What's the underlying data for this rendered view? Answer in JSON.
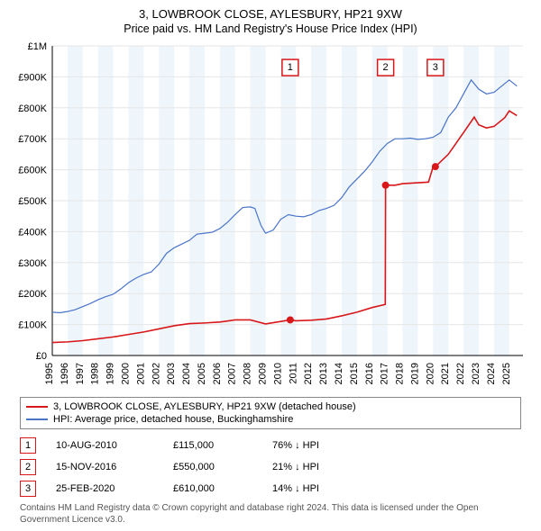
{
  "title": "3, LOWBROOK CLOSE, AYLESBURY, HP21 9XW",
  "subtitle": "Price paid vs. HM Land Registry's House Price Index (HPI)",
  "chart": {
    "type": "line",
    "x_domain": [
      1995,
      2025.9
    ],
    "y_domain": [
      0,
      1000000
    ],
    "yticks": [
      0,
      100000,
      200000,
      300000,
      400000,
      500000,
      600000,
      700000,
      800000,
      900000,
      1000000
    ],
    "ytick_labels": [
      "£0",
      "£100K",
      "£200K",
      "£300K",
      "£400K",
      "£500K",
      "£600K",
      "£700K",
      "£800K",
      "£900K",
      "£1M"
    ],
    "xticks": [
      1995,
      1996,
      1997,
      1998,
      1999,
      2000,
      2001,
      2002,
      2003,
      2004,
      2005,
      2006,
      2007,
      2008,
      2009,
      2010,
      2011,
      2012,
      2013,
      2014,
      2015,
      2016,
      2017,
      2018,
      2019,
      2020,
      2021,
      2022,
      2023,
      2024,
      2025
    ],
    "grid_color": "#e6e6e6",
    "alt_band_color": "#eef5fb",
    "axis_color": "#000000",
    "series": {
      "hpi": {
        "label": "HPI: Average price, detached house, Buckinghamshire",
        "color": "#4a74c9",
        "width": 1.2,
        "points": [
          [
            1995.0,
            140000
          ],
          [
            1995.5,
            138000
          ],
          [
            1996.0,
            142000
          ],
          [
            1996.5,
            148000
          ],
          [
            1997.0,
            158000
          ],
          [
            1997.5,
            168000
          ],
          [
            1998.0,
            180000
          ],
          [
            1998.5,
            190000
          ],
          [
            1999.0,
            198000
          ],
          [
            1999.5,
            215000
          ],
          [
            2000.0,
            235000
          ],
          [
            2000.5,
            250000
          ],
          [
            2001.0,
            262000
          ],
          [
            2001.5,
            270000
          ],
          [
            2002.0,
            295000
          ],
          [
            2002.5,
            330000
          ],
          [
            2003.0,
            348000
          ],
          [
            2003.5,
            360000
          ],
          [
            2004.0,
            372000
          ],
          [
            2004.5,
            392000
          ],
          [
            2005.0,
            395000
          ],
          [
            2005.5,
            398000
          ],
          [
            2006.0,
            410000
          ],
          [
            2006.5,
            430000
          ],
          [
            2007.0,
            455000
          ],
          [
            2007.5,
            478000
          ],
          [
            2008.0,
            480000
          ],
          [
            2008.3,
            475000
          ],
          [
            2008.7,
            420000
          ],
          [
            2009.0,
            395000
          ],
          [
            2009.5,
            405000
          ],
          [
            2010.0,
            440000
          ],
          [
            2010.5,
            455000
          ],
          [
            2011.0,
            450000
          ],
          [
            2011.5,
            448000
          ],
          [
            2012.0,
            455000
          ],
          [
            2012.5,
            468000
          ],
          [
            2013.0,
            475000
          ],
          [
            2013.5,
            485000
          ],
          [
            2014.0,
            510000
          ],
          [
            2014.5,
            545000
          ],
          [
            2015.0,
            570000
          ],
          [
            2015.5,
            595000
          ],
          [
            2016.0,
            625000
          ],
          [
            2016.5,
            660000
          ],
          [
            2017.0,
            685000
          ],
          [
            2017.5,
            700000
          ],
          [
            2018.0,
            700000
          ],
          [
            2018.5,
            702000
          ],
          [
            2019.0,
            698000
          ],
          [
            2019.5,
            700000
          ],
          [
            2020.0,
            705000
          ],
          [
            2020.5,
            720000
          ],
          [
            2021.0,
            770000
          ],
          [
            2021.5,
            800000
          ],
          [
            2022.0,
            845000
          ],
          [
            2022.5,
            890000
          ],
          [
            2023.0,
            860000
          ],
          [
            2023.5,
            845000
          ],
          [
            2024.0,
            850000
          ],
          [
            2024.5,
            870000
          ],
          [
            2025.0,
            890000
          ],
          [
            2025.5,
            870000
          ]
        ]
      },
      "price": {
        "label": "3, LOWBROOK CLOSE, AYLESBURY, HP21 9XW (detached house)",
        "color": "#d8171a",
        "width": 1.6,
        "points": [
          [
            1995.0,
            42000
          ],
          [
            1996.0,
            44000
          ],
          [
            1997.0,
            48000
          ],
          [
            1998.0,
            54000
          ],
          [
            1999.0,
            60000
          ],
          [
            2000.0,
            68000
          ],
          [
            2001.0,
            76000
          ],
          [
            2002.0,
            86000
          ],
          [
            2003.0,
            96000
          ],
          [
            2004.0,
            103000
          ],
          [
            2005.0,
            105000
          ],
          [
            2006.0,
            108000
          ],
          [
            2007.0,
            115000
          ],
          [
            2008.0,
            115000
          ],
          [
            2009.0,
            102000
          ],
          [
            2010.0,
            110000
          ],
          [
            2010.62,
            115000
          ],
          [
            2011.0,
            112000
          ],
          [
            2012.0,
            114000
          ],
          [
            2013.0,
            118000
          ],
          [
            2014.0,
            128000
          ],
          [
            2015.0,
            140000
          ],
          [
            2016.0,
            155000
          ],
          [
            2016.86,
            165000
          ],
          [
            2016.88,
            550000
          ],
          [
            2017.5,
            550000
          ],
          [
            2018.0,
            555000
          ],
          [
            2019.0,
            558000
          ],
          [
            2019.7,
            560000
          ],
          [
            2020.0,
            610000
          ],
          [
            2020.15,
            610000
          ],
          [
            2021.0,
            650000
          ],
          [
            2022.0,
            720000
          ],
          [
            2022.7,
            770000
          ],
          [
            2023.0,
            745000
          ],
          [
            2023.5,
            735000
          ],
          [
            2024.0,
            740000
          ],
          [
            2024.7,
            768000
          ],
          [
            2025.0,
            790000
          ],
          [
            2025.5,
            775000
          ]
        ]
      }
    },
    "sale_markers": [
      {
        "n": "1",
        "x": 2010.62,
        "y": 115000,
        "marker_y": 930000
      },
      {
        "n": "2",
        "x": 2016.88,
        "y": 550000,
        "marker_y": 930000
      },
      {
        "n": "3",
        "x": 2020.15,
        "y": 610000,
        "marker_y": 930000
      }
    ],
    "marker_box_size": 18,
    "marker_border": "#d8171a",
    "point_radius": 4
  },
  "legend": {
    "rows": [
      {
        "color": "#d8171a",
        "text": "3, LOWBROOK CLOSE, AYLESBURY, HP21 9XW (detached house)"
      },
      {
        "color": "#4a74c9",
        "text": "HPI: Average price, detached house, Buckinghamshire"
      }
    ]
  },
  "events": [
    {
      "n": "1",
      "date": "10-AUG-2010",
      "price": "£115,000",
      "diff": "76% ↓ HPI",
      "border": "#d8171a"
    },
    {
      "n": "2",
      "date": "15-NOV-2016",
      "price": "£550,000",
      "diff": "21% ↓ HPI",
      "border": "#d8171a"
    },
    {
      "n": "3",
      "date": "25-FEB-2020",
      "price": "£610,000",
      "diff": "14% ↓ HPI",
      "border": "#d8171a"
    }
  ],
  "copyright": "Contains HM Land Registry data © Crown copyright and database right 2024. This data is licensed under the Open Government Licence v3.0."
}
